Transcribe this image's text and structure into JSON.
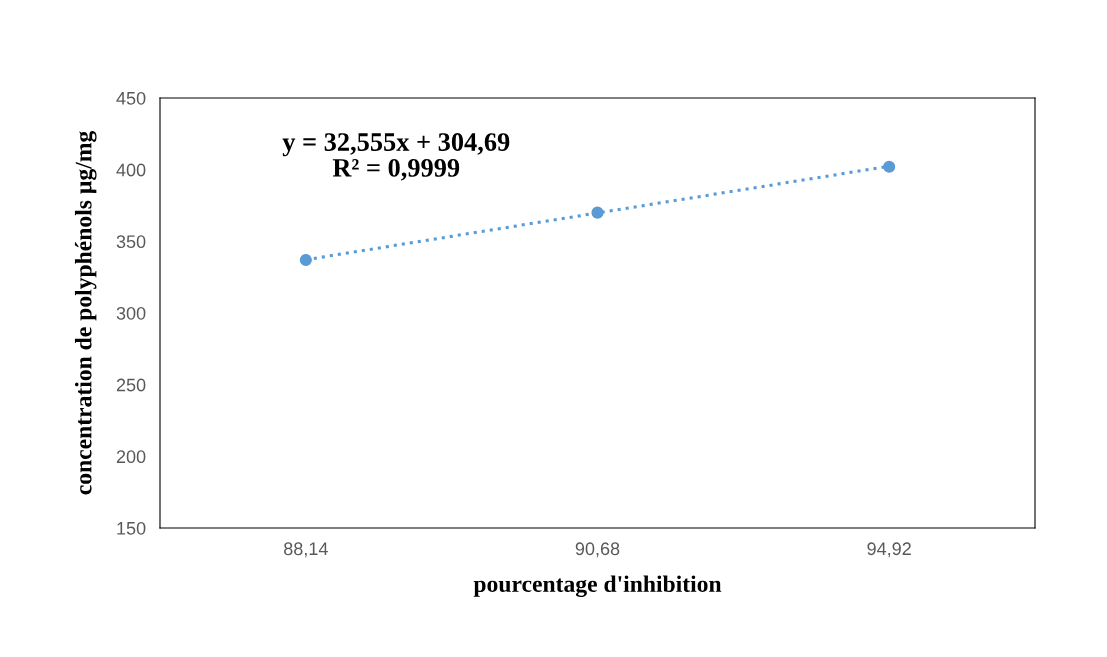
{
  "chart_data": {
    "type": "scatter",
    "xlabel": "pourcentage d'inhibition",
    "ylabel": "concentration de polyphénols µg/mg",
    "categories": [
      "88,14",
      "90,68",
      "94,92"
    ],
    "series": [
      {
        "color": "#5b9bd5",
        "values": [
          337,
          370,
          402
        ],
        "marker": "circle"
      },
      {
        "type": "line",
        "color": "#5b9bd5",
        "values": [
          337.2,
          369.8,
          402.4
        ],
        "line_style": "dotted",
        "marker": "none"
      }
    ],
    "ylim": [
      150,
      450
    ],
    "yticks": [
      150,
      200,
      250,
      300,
      350,
      400,
      450
    ],
    "annotations": [
      "y = 32,555x + 304,69\nR² = 0,9999"
    ],
    "grid": false,
    "legend": false
  }
}
